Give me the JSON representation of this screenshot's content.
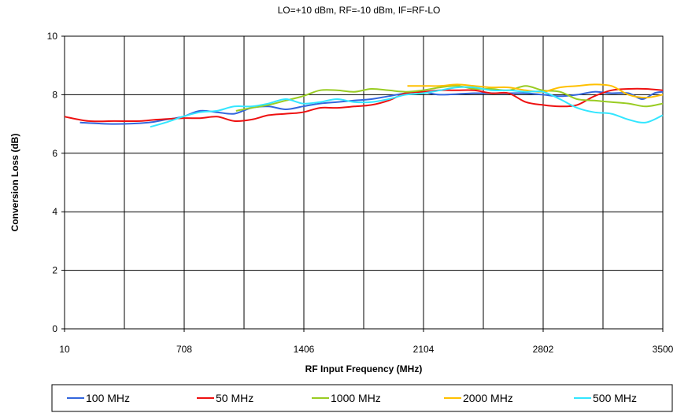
{
  "chart_data": {
    "type": "line",
    "title": "LO=+10 dBm, RF=-10 dBm, IF=RF-LO",
    "xlabel": "RF Input Frequency (MHz)",
    "ylabel": "Conversion Loss (dB)",
    "xlim": [
      10,
      3500
    ],
    "ylim": [
      0,
      10
    ],
    "x_ticks": [
      "10",
      "708",
      "1406",
      "2104",
      "2802",
      "3500"
    ],
    "y_ticks": [
      "0",
      "2",
      "4",
      "6",
      "8",
      "10"
    ],
    "grid": true,
    "legend_position": "bottom",
    "series": [
      {
        "name": "100 MHz",
        "color": "#3366dd",
        "points": [
          [
            100,
            7.05
          ],
          [
            300,
            7.0
          ],
          [
            500,
            7.05
          ],
          [
            600,
            7.15
          ],
          [
            700,
            7.25
          ],
          [
            800,
            7.45
          ],
          [
            900,
            7.4
          ],
          [
            1000,
            7.35
          ],
          [
            1100,
            7.55
          ],
          [
            1200,
            7.6
          ],
          [
            1300,
            7.5
          ],
          [
            1400,
            7.6
          ],
          [
            1500,
            7.7
          ],
          [
            1600,
            7.75
          ],
          [
            1700,
            7.8
          ],
          [
            1800,
            7.85
          ],
          [
            1900,
            7.95
          ],
          [
            2000,
            8.05
          ],
          [
            2100,
            8.1
          ],
          [
            2200,
            8.0
          ],
          [
            2400,
            8.05
          ],
          [
            2600,
            8.05
          ],
          [
            2700,
            8.05
          ],
          [
            2800,
            8.0
          ],
          [
            2900,
            7.95
          ],
          [
            3000,
            8.0
          ],
          [
            3100,
            8.1
          ],
          [
            3200,
            8.05
          ],
          [
            3300,
            8.05
          ],
          [
            3380,
            7.85
          ],
          [
            3450,
            8.05
          ],
          [
            3500,
            8.1
          ]
        ]
      },
      {
        "name": "50 MHz",
        "color": "#ee1111",
        "points": [
          [
            10,
            7.25
          ],
          [
            150,
            7.1
          ],
          [
            300,
            7.1
          ],
          [
            450,
            7.1
          ],
          [
            550,
            7.15
          ],
          [
            700,
            7.2
          ],
          [
            800,
            7.2
          ],
          [
            900,
            7.25
          ],
          [
            1000,
            7.1
          ],
          [
            1100,
            7.15
          ],
          [
            1200,
            7.3
          ],
          [
            1300,
            7.35
          ],
          [
            1400,
            7.4
          ],
          [
            1500,
            7.55
          ],
          [
            1600,
            7.55
          ],
          [
            1700,
            7.6
          ],
          [
            1800,
            7.65
          ],
          [
            1900,
            7.8
          ],
          [
            2000,
            8.05
          ],
          [
            2100,
            8.1
          ],
          [
            2200,
            8.15
          ],
          [
            2300,
            8.15
          ],
          [
            2400,
            8.15
          ],
          [
            2500,
            8.05
          ],
          [
            2600,
            8.05
          ],
          [
            2700,
            7.75
          ],
          [
            2800,
            7.65
          ],
          [
            2900,
            7.6
          ],
          [
            3000,
            7.65
          ],
          [
            3100,
            7.95
          ],
          [
            3200,
            8.15
          ],
          [
            3300,
            8.2
          ],
          [
            3400,
            8.2
          ],
          [
            3500,
            8.15
          ]
        ]
      },
      {
        "name": "1000 MHz",
        "color": "#99cc22",
        "points": [
          [
            1010,
            7.45
          ],
          [
            1100,
            7.55
          ],
          [
            1200,
            7.65
          ],
          [
            1300,
            7.8
          ],
          [
            1400,
            7.95
          ],
          [
            1500,
            8.15
          ],
          [
            1600,
            8.15
          ],
          [
            1700,
            8.1
          ],
          [
            1800,
            8.2
          ],
          [
            1900,
            8.15
          ],
          [
            2000,
            8.1
          ],
          [
            2100,
            8.15
          ],
          [
            2200,
            8.25
          ],
          [
            2300,
            8.3
          ],
          [
            2400,
            8.2
          ],
          [
            2500,
            8.2
          ],
          [
            2600,
            8.15
          ],
          [
            2700,
            8.3
          ],
          [
            2800,
            8.15
          ],
          [
            2900,
            8.1
          ],
          [
            3000,
            7.85
          ],
          [
            3100,
            7.8
          ],
          [
            3200,
            7.75
          ],
          [
            3300,
            7.7
          ],
          [
            3400,
            7.6
          ],
          [
            3500,
            7.7
          ]
        ]
      },
      {
        "name": "2000 MHz",
        "color": "#ffc000",
        "points": [
          [
            2010,
            8.3
          ],
          [
            2100,
            8.3
          ],
          [
            2200,
            8.3
          ],
          [
            2300,
            8.35
          ],
          [
            2400,
            8.3
          ],
          [
            2500,
            8.25
          ],
          [
            2600,
            8.25
          ],
          [
            2700,
            8.15
          ],
          [
            2800,
            8.1
          ],
          [
            2900,
            8.25
          ],
          [
            3000,
            8.3
          ],
          [
            3100,
            8.35
          ],
          [
            3200,
            8.3
          ],
          [
            3300,
            8.0
          ],
          [
            3400,
            7.9
          ],
          [
            3500,
            8.0
          ]
        ]
      },
      {
        "name": "500 MHz",
        "color": "#33e6ff",
        "points": [
          [
            510,
            6.9
          ],
          [
            600,
            7.05
          ],
          [
            700,
            7.25
          ],
          [
            800,
            7.4
          ],
          [
            900,
            7.45
          ],
          [
            1000,
            7.6
          ],
          [
            1100,
            7.6
          ],
          [
            1200,
            7.7
          ],
          [
            1300,
            7.85
          ],
          [
            1400,
            7.7
          ],
          [
            1500,
            7.75
          ],
          [
            1600,
            7.85
          ],
          [
            1700,
            7.75
          ],
          [
            1800,
            7.75
          ],
          [
            1900,
            7.85
          ],
          [
            2000,
            8.0
          ],
          [
            2100,
            8.05
          ],
          [
            2200,
            8.15
          ],
          [
            2300,
            8.25
          ],
          [
            2400,
            8.25
          ],
          [
            2500,
            8.15
          ],
          [
            2600,
            8.15
          ],
          [
            2700,
            8.1
          ],
          [
            2800,
            8.1
          ],
          [
            2900,
            7.85
          ],
          [
            3000,
            7.55
          ],
          [
            3100,
            7.4
          ],
          [
            3200,
            7.35
          ],
          [
            3300,
            7.15
          ],
          [
            3400,
            7.05
          ],
          [
            3500,
            7.3
          ]
        ]
      }
    ]
  }
}
